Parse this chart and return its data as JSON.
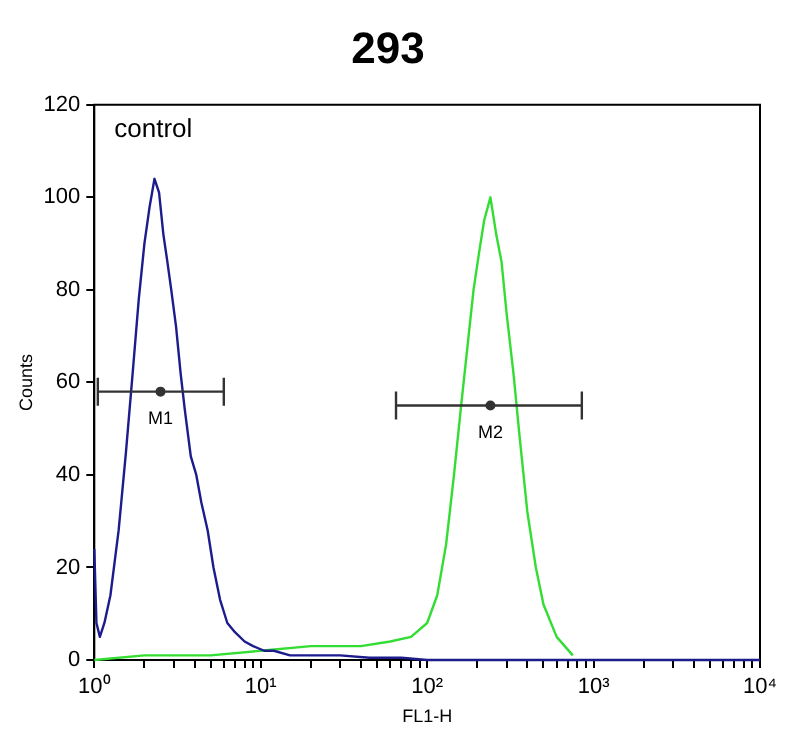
{
  "chart_data": {
    "type": "line",
    "title": "293",
    "xlabel": "FL1-H",
    "ylabel": "Counts",
    "log": "x",
    "grid": false,
    "legend": false,
    "xlim": [
      1,
      10000
    ],
    "ylim": [
      0,
      120
    ],
    "xticks": [
      {
        "value": 1,
        "label": "10⁰"
      },
      {
        "value": 2,
        "label": null
      },
      {
        "value": 3,
        "label": null
      },
      {
        "value": 4,
        "label": null
      },
      {
        "value": 5,
        "label": null
      },
      {
        "value": 6,
        "label": null
      },
      {
        "value": 7,
        "label": null
      },
      {
        "value": 8,
        "label": null
      },
      {
        "value": 9,
        "label": null
      },
      {
        "value": 10,
        "label": "10¹"
      },
      {
        "value": 20,
        "label": null
      },
      {
        "value": 30,
        "label": null
      },
      {
        "value": 40,
        "label": null
      },
      {
        "value": 50,
        "label": null
      },
      {
        "value": 60,
        "label": null
      },
      {
        "value": 70,
        "label": null
      },
      {
        "value": 80,
        "label": null
      },
      {
        "value": 90,
        "label": null
      },
      {
        "value": 100,
        "label": "10²"
      },
      {
        "value": 200,
        "label": null
      },
      {
        "value": 300,
        "label": null
      },
      {
        "value": 400,
        "label": null
      },
      {
        "value": 500,
        "label": null
      },
      {
        "value": 600,
        "label": null
      },
      {
        "value": 700,
        "label": null
      },
      {
        "value": 800,
        "label": null
      },
      {
        "value": 900,
        "label": null
      },
      {
        "value": 1000,
        "label": "10³"
      },
      {
        "value": 2000,
        "label": null
      },
      {
        "value": 3000,
        "label": null
      },
      {
        "value": 4000,
        "label": null
      },
      {
        "value": 5000,
        "label": null
      },
      {
        "value": 6000,
        "label": null
      },
      {
        "value": 7000,
        "label": null
      },
      {
        "value": 8000,
        "label": null
      },
      {
        "value": 9000,
        "label": null
      },
      {
        "value": 10000,
        "label": "10⁴"
      }
    ],
    "yticks": [
      0,
      20,
      40,
      60,
      80,
      100,
      120
    ],
    "series": [
      {
        "marker": "none",
        "color": "#1c1c8c",
        "x": [
          1,
          1.03,
          1.08,
          1.15,
          1.25,
          1.4,
          1.55,
          1.7,
          1.85,
          2.0,
          2.15,
          2.3,
          2.45,
          2.6,
          2.75,
          2.9,
          3.1,
          3.3,
          3.5,
          3.8,
          4.1,
          4.4,
          4.8,
          5.2,
          5.7,
          6.3,
          7,
          8,
          9,
          10.5,
          12,
          15,
          20,
          30,
          45,
          70,
          100,
          200,
          500,
          1000,
          3000,
          10000
        ],
        "values": [
          24,
          8,
          5,
          8,
          14,
          28,
          45,
          62,
          78,
          90,
          98,
          104,
          101,
          92,
          86,
          80,
          72,
          62,
          54,
          44,
          40,
          34,
          28,
          20,
          13,
          8,
          6,
          4,
          3,
          2,
          2,
          1,
          1,
          1,
          0.5,
          0.5,
          0,
          0,
          0,
          0,
          0,
          0
        ]
      },
      {
        "marker": "none",
        "color": "#33dd33",
        "x": [
          1,
          2,
          5,
          10,
          20,
          40,
          60,
          80,
          100,
          115,
          130,
          145,
          160,
          175,
          190,
          205,
          220,
          240,
          260,
          280,
          300,
          330,
          360,
          400,
          450,
          500,
          600,
          750
        ],
        "values": [
          0,
          1,
          1,
          2,
          3,
          3,
          4,
          5,
          8,
          14,
          25,
          40,
          55,
          68,
          80,
          88,
          95,
          100,
          92,
          86,
          75,
          62,
          48,
          32,
          20,
          12,
          5,
          1
        ]
      },
      {
        "type": "scatter",
        "marker": "circle",
        "color": "#333333",
        "x": [
          2.5
        ],
        "values": [
          58
        ],
        "xerrors": [
          [
            1.05,
            6
          ]
        ]
      },
      {
        "type": "scatter",
        "marker": "circle",
        "color": "#333333",
        "x": [
          240
        ],
        "values": [
          55
        ],
        "xerrors": [
          [
            65,
            850
          ]
        ]
      }
    ],
    "annotations": [
      "control",
      {
        "text": "M1",
        "x": 2.5,
        "y": 58
      },
      {
        "text": "M2",
        "x": 240,
        "y": 55
      }
    ]
  }
}
